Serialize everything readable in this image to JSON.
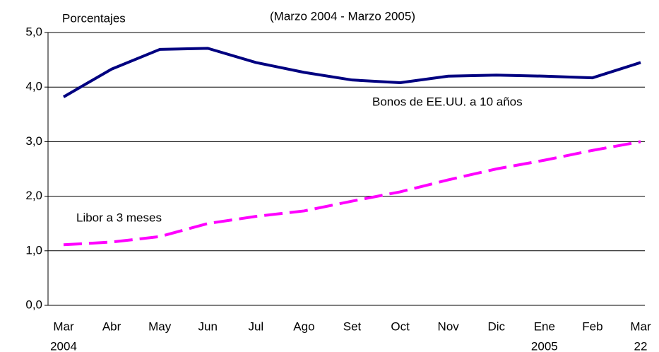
{
  "chart_data": {
    "type": "line",
    "subtitle": "(Marzo 2004 - Marzo 2005)",
    "y_label": "Porcentajes",
    "categories": [
      "Mar",
      "Abr",
      "May",
      "Jun",
      "Jul",
      "Ago",
      "Set",
      "Oct",
      "Nov",
      "Dic",
      "Ene",
      "Feb",
      "Mar"
    ],
    "sublabels": [
      "2004",
      null,
      null,
      null,
      null,
      null,
      null,
      null,
      null,
      null,
      "2005",
      null,
      "22"
    ],
    "series": [
      {
        "name": "Bonos de EE.UU. a 10 años",
        "color": "#000080",
        "dash": false,
        "values": [
          3.82,
          4.33,
          4.69,
          4.71,
          4.45,
          4.27,
          4.13,
          4.08,
          4.2,
          4.22,
          4.2,
          4.17,
          4.45
        ]
      },
      {
        "name": "Libor a 3 meses",
        "color": "#ff00ff",
        "dash": true,
        "values": [
          1.11,
          1.16,
          1.26,
          1.5,
          1.63,
          1.73,
          1.91,
          2.08,
          2.3,
          2.5,
          2.66,
          2.84,
          3.0
        ]
      }
    ],
    "ylim": [
      0,
      5
    ],
    "yticks": [
      {
        "value": 0,
        "label": "0,0"
      },
      {
        "value": 1,
        "label": "1,0"
      },
      {
        "value": 2,
        "label": "2,0"
      },
      {
        "value": 3,
        "label": "3,0"
      },
      {
        "value": 4,
        "label": "4,0"
      },
      {
        "value": 5,
        "label": "5,0"
      }
    ],
    "grid": true
  }
}
